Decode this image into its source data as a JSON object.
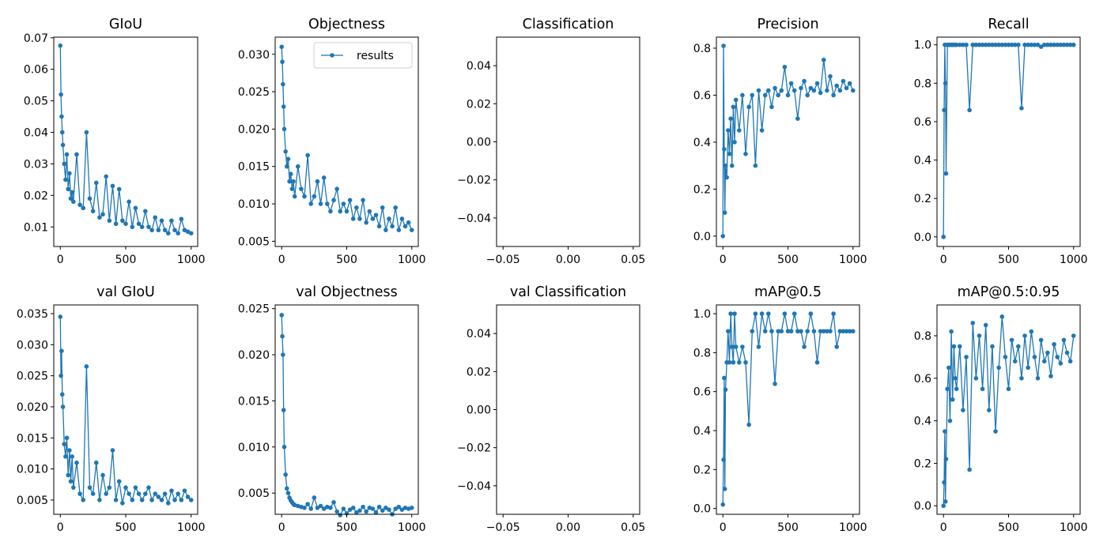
{
  "chart_data": {
    "type": "line",
    "series_color": "#1f77b4",
    "legend": {
      "label": "results",
      "placement": "upper-right",
      "in_subplot": "Objectness"
    },
    "x": [
      0,
      5,
      10,
      15,
      20,
      30,
      40,
      50,
      60,
      70,
      80,
      90,
      100,
      125,
      150,
      175,
      200,
      225,
      250,
      275,
      300,
      325,
      350,
      375,
      400,
      425,
      450,
      475,
      500,
      525,
      550,
      575,
      600,
      625,
      650,
      675,
      700,
      725,
      750,
      775,
      800,
      825,
      850,
      875,
      900,
      925,
      950,
      975,
      1000
    ],
    "subplots": [
      {
        "title": "GIoU",
        "xlim": [
          -50,
          1050
        ],
        "ylim": [
          0.0038,
          0.0702
        ],
        "xticks": [
          0,
          500,
          1000
        ],
        "xtick_labels": [
          "0",
          "500",
          "1000"
        ],
        "yticks": [
          0.01,
          0.02,
          0.03,
          0.04,
          0.05,
          0.06,
          0.07
        ],
        "ytick_labels": [
          "0.01",
          "0.02",
          "0.03",
          "0.04",
          "0.05",
          "0.06",
          "0.07"
        ],
        "y": [
          0.0675,
          0.052,
          0.045,
          0.04,
          0.036,
          0.03,
          0.025,
          0.033,
          0.022,
          0.027,
          0.019,
          0.021,
          0.018,
          0.033,
          0.017,
          0.016,
          0.04,
          0.019,
          0.015,
          0.024,
          0.013,
          0.014,
          0.026,
          0.012,
          0.023,
          0.011,
          0.022,
          0.012,
          0.011,
          0.018,
          0.01,
          0.016,
          0.011,
          0.01,
          0.015,
          0.01,
          0.009,
          0.013,
          0.009,
          0.012,
          0.009,
          0.008,
          0.012,
          0.009,
          0.008,
          0.0125,
          0.009,
          0.0085,
          0.008
        ]
      },
      {
        "title": "Objectness",
        "xlim": [
          -50,
          1050
        ],
        "ylim": [
          0.0043,
          0.0323
        ],
        "xticks": [
          0,
          500,
          1000
        ],
        "xtick_labels": [
          "0",
          "500",
          "1000"
        ],
        "yticks": [
          0.005,
          0.01,
          0.015,
          0.02,
          0.025,
          0.03
        ],
        "ytick_labels": [
          "0.005",
          "0.010",
          "0.015",
          "0.020",
          "0.025",
          "0.030"
        ],
        "y": [
          0.031,
          0.029,
          0.026,
          0.023,
          0.02,
          0.017,
          0.015,
          0.016,
          0.013,
          0.014,
          0.012,
          0.013,
          0.011,
          0.015,
          0.012,
          0.011,
          0.0165,
          0.01,
          0.011,
          0.013,
          0.01,
          0.0135,
          0.01,
          0.009,
          0.0105,
          0.012,
          0.009,
          0.01,
          0.009,
          0.0105,
          0.008,
          0.0095,
          0.008,
          0.0105,
          0.0075,
          0.009,
          0.008,
          0.0085,
          0.007,
          0.0095,
          0.0065,
          0.008,
          0.007,
          0.0095,
          0.0065,
          0.008,
          0.007,
          0.0075,
          0.0065
        ]
      },
      {
        "title": "Classification",
        "xlim": [
          -0.055,
          0.055
        ],
        "ylim": [
          -0.055,
          0.055
        ],
        "xticks": [
          -0.05,
          0.0,
          0.05
        ],
        "xtick_labels": [
          "−0.05",
          "0.00",
          "0.05"
        ],
        "yticks": [
          -0.04,
          -0.02,
          0.0,
          0.02,
          0.04
        ],
        "ytick_labels": [
          "−0.04",
          "−0.02",
          "0.00",
          "0.02",
          "0.04"
        ],
        "y": []
      },
      {
        "title": "Precision",
        "xlim": [
          -50,
          1050
        ],
        "ylim": [
          -0.044,
          0.847
        ],
        "xticks": [
          0,
          500,
          1000
        ],
        "xtick_labels": [
          "0",
          "500",
          "1000"
        ],
        "yticks": [
          0.0,
          0.2,
          0.4,
          0.6,
          0.8
        ],
        "ytick_labels": [
          "0.0",
          "0.2",
          "0.4",
          "0.6",
          "0.8"
        ],
        "y": [
          0.0,
          0.81,
          0.37,
          0.1,
          0.3,
          0.25,
          0.45,
          0.35,
          0.5,
          0.3,
          0.55,
          0.4,
          0.58,
          0.45,
          0.6,
          0.35,
          0.55,
          0.6,
          0.3,
          0.62,
          0.45,
          0.6,
          0.62,
          0.55,
          0.63,
          0.6,
          0.62,
          0.72,
          0.6,
          0.65,
          0.62,
          0.5,
          0.63,
          0.66,
          0.6,
          0.63,
          0.62,
          0.65,
          0.61,
          0.75,
          0.62,
          0.68,
          0.6,
          0.64,
          0.62,
          0.66,
          0.63,
          0.65,
          0.62
        ]
      },
      {
        "title": "Recall",
        "xlim": [
          -50,
          1050
        ],
        "ylim": [
          -0.05,
          1.04
        ],
        "xticks": [
          0,
          500,
          1000
        ],
        "xtick_labels": [
          "0",
          "500",
          "1000"
        ],
        "yticks": [
          0.0,
          0.2,
          0.4,
          0.6,
          0.8,
          1.0
        ],
        "ytick_labels": [
          "0.0",
          "0.2",
          "0.4",
          "0.6",
          "0.8",
          "1.0"
        ],
        "y": [
          0.0,
          0.66,
          1.0,
          0.8,
          0.33,
          1.0,
          1.0,
          1.0,
          1.0,
          1.0,
          1.0,
          1.0,
          1.0,
          1.0,
          1.0,
          1.0,
          0.66,
          1.0,
          1.0,
          1.0,
          1.0,
          1.0,
          1.0,
          1.0,
          1.0,
          1.0,
          1.0,
          1.0,
          1.0,
          1.0,
          1.0,
          1.0,
          0.67,
          1.0,
          1.0,
          1.0,
          1.0,
          1.0,
          0.99,
          1.0,
          1.0,
          1.0,
          1.0,
          1.0,
          1.0,
          1.0,
          1.0,
          1.0,
          1.0
        ]
      },
      {
        "title": "val GIoU",
        "xlim": [
          -50,
          1050
        ],
        "ylim": [
          0.0027,
          0.0364
        ],
        "xticks": [
          0,
          500,
          1000
        ],
        "xtick_labels": [
          "0",
          "500",
          "1000"
        ],
        "yticks": [
          0.005,
          0.01,
          0.015,
          0.02,
          0.025,
          0.03,
          0.035
        ],
        "ytick_labels": [
          "0.005",
          "0.010",
          "0.015",
          "0.020",
          "0.025",
          "0.030",
          "0.035"
        ],
        "y": [
          0.0345,
          0.025,
          0.029,
          0.022,
          0.02,
          0.014,
          0.012,
          0.015,
          0.009,
          0.013,
          0.008,
          0.012,
          0.007,
          0.011,
          0.006,
          0.005,
          0.0265,
          0.007,
          0.006,
          0.011,
          0.005,
          0.009,
          0.006,
          0.007,
          0.013,
          0.005,
          0.008,
          0.0045,
          0.007,
          0.006,
          0.005,
          0.007,
          0.006,
          0.005,
          0.006,
          0.007,
          0.005,
          0.006,
          0.0055,
          0.005,
          0.006,
          0.0045,
          0.0065,
          0.005,
          0.006,
          0.005,
          0.0065,
          0.0055,
          0.005
        ]
      },
      {
        "title": "val Objectness",
        "xlim": [
          -50,
          1050
        ],
        "ylim": [
          0.0027,
          0.0254
        ],
        "xticks": [
          0,
          500,
          1000
        ],
        "xtick_labels": [
          "0",
          "500",
          "1000"
        ],
        "yticks": [
          0.005,
          0.01,
          0.015,
          0.02,
          0.025
        ],
        "ytick_labels": [
          "0.005",
          "0.010",
          "0.015",
          "0.020",
          "0.025"
        ],
        "y": [
          0.0243,
          0.022,
          0.02,
          0.014,
          0.01,
          0.007,
          0.0055,
          0.005,
          0.0045,
          0.0042,
          0.004,
          0.0038,
          0.0037,
          0.0036,
          0.0035,
          0.0034,
          0.0038,
          0.0033,
          0.0045,
          0.0034,
          0.0036,
          0.0033,
          0.0035,
          0.0034,
          0.004,
          0.003,
          0.0026,
          0.0033,
          0.0028,
          0.0032,
          0.0034,
          0.0029,
          0.0031,
          0.0035,
          0.003,
          0.0034,
          0.0033,
          0.0029,
          0.0035,
          0.0031,
          0.0034,
          0.0032,
          0.0027,
          0.0033,
          0.0035,
          0.0032,
          0.0034,
          0.0033,
          0.0034
        ]
      },
      {
        "title": "val Classification",
        "xlim": [
          -0.055,
          0.055
        ],
        "ylim": [
          -0.055,
          0.055
        ],
        "xticks": [
          -0.05,
          0.0,
          0.05
        ],
        "xtick_labels": [
          "−0.05",
          "0.00",
          "0.05"
        ],
        "yticks": [
          -0.04,
          -0.02,
          0.0,
          0.02,
          0.04
        ],
        "ytick_labels": [
          "−0.04",
          "−0.02",
          "0.00",
          "0.02",
          "0.04"
        ],
        "y": []
      },
      {
        "title": "mAP@0.5",
        "xlim": [
          -50,
          1050
        ],
        "ylim": [
          -0.03,
          1.045
        ],
        "xticks": [
          0,
          500,
          1000
        ],
        "xtick_labels": [
          "0",
          "500",
          "1000"
        ],
        "yticks": [
          0.0,
          0.2,
          0.4,
          0.6,
          0.8,
          1.0
        ],
        "ytick_labels": [
          "0.0",
          "0.2",
          "0.4",
          "0.6",
          "0.8",
          "1.0"
        ],
        "y": [
          0.02,
          0.25,
          0.67,
          0.1,
          0.61,
          0.75,
          0.91,
          0.75,
          1.0,
          0.83,
          0.75,
          1.0,
          0.83,
          0.75,
          0.83,
          0.75,
          0.43,
          0.91,
          1.0,
          0.83,
          1.0,
          0.91,
          1.0,
          0.91,
          0.64,
          0.91,
          0.91,
          1.0,
          0.91,
          0.91,
          1.0,
          0.91,
          0.91,
          0.83,
          0.91,
          1.0,
          0.91,
          0.75,
          0.91,
          0.91,
          0.91,
          0.91,
          1.0,
          0.83,
          0.91,
          0.91,
          0.91,
          0.91,
          0.91
        ]
      },
      {
        "title": "mAP@0.5:0.95",
        "xlim": [
          -50,
          1050
        ],
        "ylim": [
          -0.04,
          0.945
        ],
        "xticks": [
          0,
          500,
          1000
        ],
        "xtick_labels": [
          "0",
          "500",
          "1000"
        ],
        "yticks": [
          0.0,
          0.2,
          0.4,
          0.6,
          0.8
        ],
        "ytick_labels": [
          "0.0",
          "0.2",
          "0.4",
          "0.6",
          "0.8"
        ],
        "y": [
          0.0,
          0.11,
          0.35,
          0.02,
          0.22,
          0.55,
          0.65,
          0.4,
          0.82,
          0.5,
          0.75,
          0.6,
          0.55,
          0.75,
          0.45,
          0.7,
          0.17,
          0.86,
          0.6,
          0.8,
          0.55,
          0.85,
          0.45,
          0.75,
          0.35,
          0.65,
          0.89,
          0.7,
          0.55,
          0.78,
          0.68,
          0.75,
          0.6,
          0.8,
          0.65,
          0.82,
          0.7,
          0.6,
          0.78,
          0.68,
          0.72,
          0.61,
          0.76,
          0.7,
          0.67,
          0.78,
          0.72,
          0.68,
          0.8
        ]
      }
    ]
  }
}
